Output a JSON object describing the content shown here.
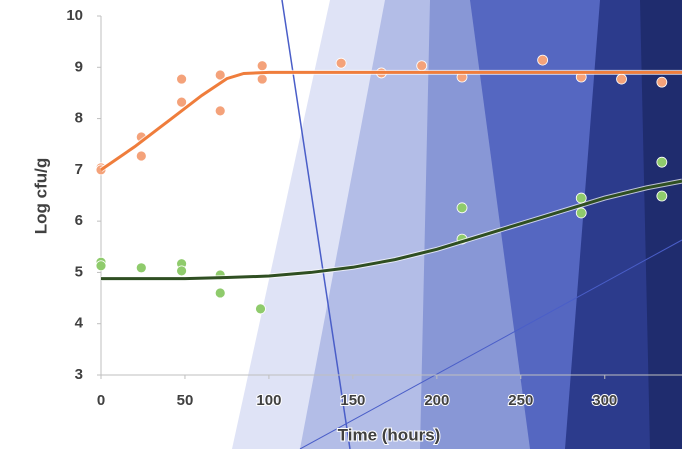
{
  "chart_data": {
    "type": "scatter",
    "xlabel": "Time (hours)",
    "ylabel": "Log cfu/g",
    "xlim": [
      0,
      346
    ],
    "xticks": [
      0,
      50,
      100,
      150,
      200,
      250,
      300
    ],
    "ylim": [
      3,
      10
    ],
    "yticks": [
      3,
      4,
      5,
      6,
      7,
      8,
      9,
      10
    ],
    "series": [
      {
        "mode": "markers",
        "color": "#f4a27a",
        "x": [
          0,
          0,
          24,
          24,
          48,
          48,
          71,
          71,
          96,
          96,
          143,
          167,
          191,
          215,
          263,
          286,
          310,
          334
        ],
        "values": [
          7.04,
          7.0,
          7.64,
          7.27,
          8.77,
          8.32,
          8.85,
          8.15,
          9.03,
          8.77,
          9.08,
          8.89,
          9.03,
          8.81,
          9.14,
          8.81,
          8.77,
          8.71
        ]
      },
      {
        "mode": "line",
        "color": "#ef7d3c",
        "x": [
          0,
          20,
          40,
          60,
          75,
          85,
          100,
          150,
          200,
          250,
          300,
          346
        ],
        "values": [
          7.0,
          7.45,
          7.95,
          8.45,
          8.78,
          8.88,
          8.9,
          8.9,
          8.9,
          8.9,
          8.9,
          8.9
        ]
      },
      {
        "mode": "markers",
        "color": "#8fcb6c",
        "x": [
          0,
          0,
          24,
          48,
          48,
          71,
          71,
          95,
          215,
          215,
          286,
          286,
          334,
          334
        ],
        "values": [
          5.2,
          5.13,
          5.09,
          5.17,
          5.03,
          4.95,
          4.6,
          4.29,
          6.26,
          5.65,
          6.45,
          6.16,
          7.15,
          6.49
        ]
      },
      {
        "mode": "line",
        "color": "#2f4f22",
        "x": [
          0,
          50,
          75,
          100,
          125,
          150,
          175,
          200,
          225,
          250,
          275,
          300,
          325,
          346
        ],
        "values": [
          4.88,
          4.88,
          4.9,
          4.93,
          5.0,
          5.1,
          5.25,
          5.45,
          5.7,
          5.95,
          6.2,
          6.45,
          6.65,
          6.78
        ]
      }
    ]
  }
}
